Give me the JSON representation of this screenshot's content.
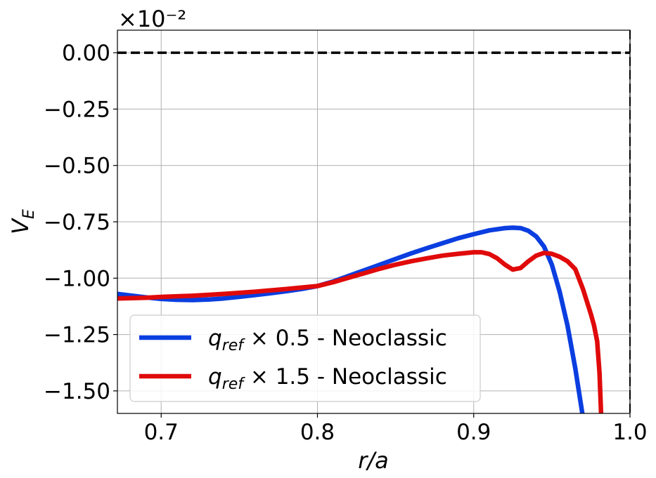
{
  "chart_data": {
    "type": "line",
    "title": "",
    "xlabel": "r/a",
    "ylabel": "V_E",
    "y_scale_label": "×10⁻²",
    "y_scale_factor": 0.01,
    "xlim": [
      0.672,
      1.0
    ],
    "ylim": [
      -1.6,
      0.1
    ],
    "grid": true,
    "legend_position": "lower-left",
    "x_ticks": [
      0.7,
      0.8,
      0.9,
      1.0
    ],
    "x_tick_labels": [
      "0.7",
      "0.8",
      "0.9",
      "1.0"
    ],
    "y_ticks": [
      0.0,
      -0.25,
      -0.5,
      -0.75,
      -1.0,
      -1.25,
      -1.5
    ],
    "y_tick_labels": [
      "0.00",
      "−0.25",
      "−0.50",
      "−0.75",
      "−1.00",
      "−1.25",
      "−1.50"
    ],
    "reference_lines": [
      {
        "orientation": "horizontal",
        "value": 0.0,
        "style": "dashed",
        "color": "#000000"
      },
      {
        "orientation": "vertical",
        "value": 1.0,
        "style": "dashed",
        "color": "#000000"
      }
    ],
    "series": [
      {
        "name_main": "q",
        "name_sub": "ref",
        "name_rest": " × 0.5 - Neoclassic",
        "color": "#0a3ee0",
        "x": [
          0.672,
          0.69,
          0.7,
          0.71,
          0.72,
          0.73,
          0.74,
          0.75,
          0.76,
          0.77,
          0.78,
          0.79,
          0.8,
          0.81,
          0.82,
          0.83,
          0.84,
          0.85,
          0.86,
          0.87,
          0.88,
          0.89,
          0.9,
          0.91,
          0.92,
          0.925,
          0.93,
          0.935,
          0.94,
          0.945,
          0.95,
          0.955,
          0.96,
          0.965,
          0.9695
        ],
        "y": [
          -1.07,
          -1.085,
          -1.092,
          -1.096,
          -1.097,
          -1.095,
          -1.09,
          -1.083,
          -1.075,
          -1.067,
          -1.058,
          -1.048,
          -1.035,
          -1.015,
          -0.99,
          -0.965,
          -0.94,
          -0.915,
          -0.89,
          -0.867,
          -0.845,
          -0.823,
          -0.805,
          -0.788,
          -0.778,
          -0.776,
          -0.778,
          -0.79,
          -0.815,
          -0.86,
          -0.94,
          -1.06,
          -1.21,
          -1.4,
          -1.6
        ]
      },
      {
        "name_main": "q",
        "name_sub": "ref",
        "name_rest": " × 1.5 - Neoclassic",
        "color": "#e00a0a",
        "x": [
          0.672,
          0.69,
          0.7,
          0.72,
          0.74,
          0.76,
          0.78,
          0.8,
          0.81,
          0.82,
          0.83,
          0.84,
          0.85,
          0.86,
          0.87,
          0.88,
          0.89,
          0.9,
          0.905,
          0.91,
          0.915,
          0.92,
          0.925,
          0.93,
          0.935,
          0.94,
          0.945,
          0.95,
          0.955,
          0.96,
          0.965,
          0.97,
          0.975,
          0.977,
          0.979,
          0.9805,
          0.9815
        ],
        "y": [
          -1.09,
          -1.087,
          -1.083,
          -1.078,
          -1.07,
          -1.06,
          -1.048,
          -1.035,
          -1.018,
          -0.998,
          -0.978,
          -0.958,
          -0.94,
          -0.925,
          -0.912,
          -0.9,
          -0.892,
          -0.885,
          -0.885,
          -0.893,
          -0.912,
          -0.94,
          -0.962,
          -0.955,
          -0.925,
          -0.9,
          -0.888,
          -0.892,
          -0.905,
          -0.925,
          -0.96,
          -1.05,
          -1.16,
          -1.21,
          -1.28,
          -1.42,
          -1.6
        ]
      }
    ]
  }
}
